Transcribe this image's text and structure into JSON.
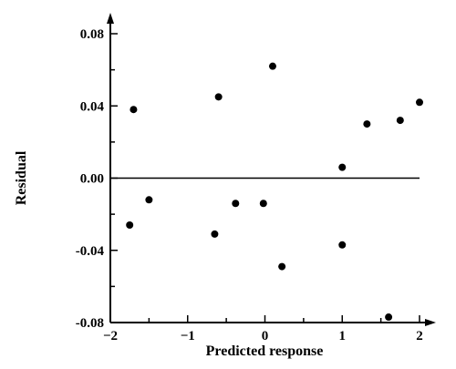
{
  "chart_data": {
    "type": "scatter",
    "title": "",
    "xlabel": "Predicted response",
    "ylabel": "Residual",
    "xlim": [
      -2,
      2
    ],
    "ylim": [
      -0.08,
      0.08
    ],
    "x_ticks": [
      -2,
      -1,
      0,
      1,
      2
    ],
    "x_tick_labels": [
      "−2",
      "−1",
      "0",
      "1",
      "2"
    ],
    "y_ticks": [
      0.08,
      0.04,
      0.0,
      -0.04,
      -0.08
    ],
    "y_tick_labels": [
      "0.08",
      "0.04",
      "0.00",
      "-0.04",
      "-0.08"
    ],
    "reference_line_y": 0,
    "grid": false,
    "points": [
      {
        "x": -1.75,
        "y": -0.026
      },
      {
        "x": -1.7,
        "y": 0.038
      },
      {
        "x": -1.5,
        "y": -0.012
      },
      {
        "x": -0.65,
        "y": -0.031
      },
      {
        "x": -0.6,
        "y": 0.045
      },
      {
        "x": -0.38,
        "y": -0.014
      },
      {
        "x": -0.02,
        "y": -0.014
      },
      {
        "x": 0.1,
        "y": 0.062
      },
      {
        "x": 0.22,
        "y": -0.049
      },
      {
        "x": 1.0,
        "y": 0.006
      },
      {
        "x": 1.0,
        "y": -0.037
      },
      {
        "x": 1.32,
        "y": 0.03
      },
      {
        "x": 1.6,
        "y": -0.077
      },
      {
        "x": 1.75,
        "y": 0.032
      },
      {
        "x": 2.0,
        "y": 0.042
      }
    ]
  }
}
